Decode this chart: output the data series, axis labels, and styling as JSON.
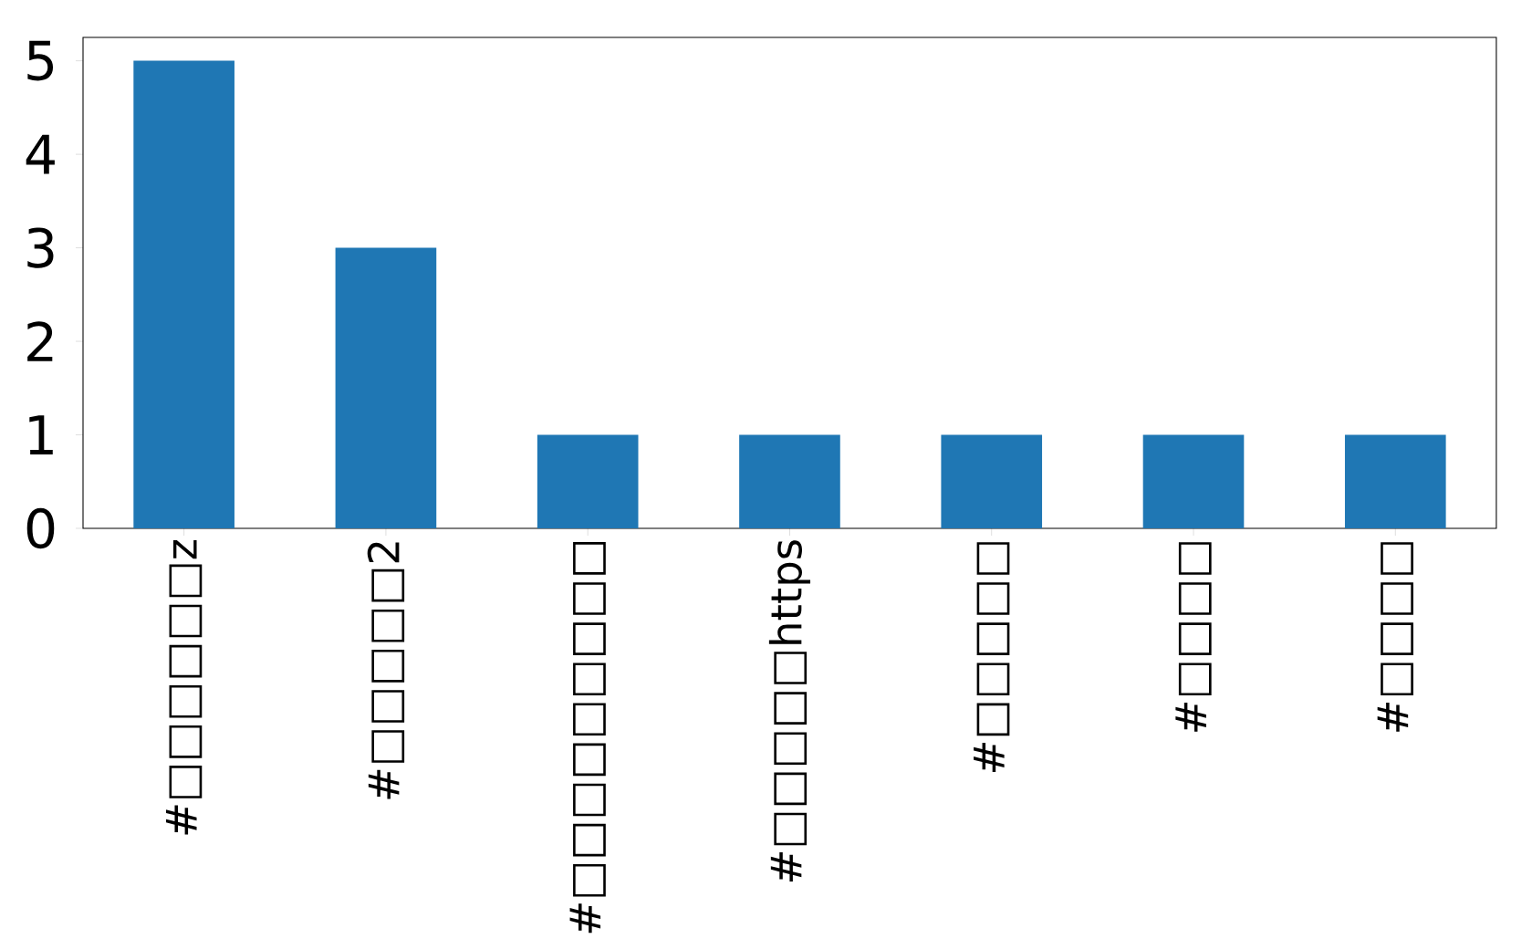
{
  "chart_data": {
    "type": "bar",
    "categories": [
      "#□□□□□□z",
      "#□□□□□2",
      "#□□□□□□□□□",
      "#□□□□□https",
      "#□□□□□",
      "#□□□□",
      "#□□□□"
    ],
    "values": [
      5,
      3,
      1,
      1,
      1,
      1,
      1
    ],
    "color": "#1f77b4",
    "ylim": [
      0,
      5.25
    ],
    "yticks": [
      0,
      1,
      2,
      3,
      4,
      5
    ]
  }
}
